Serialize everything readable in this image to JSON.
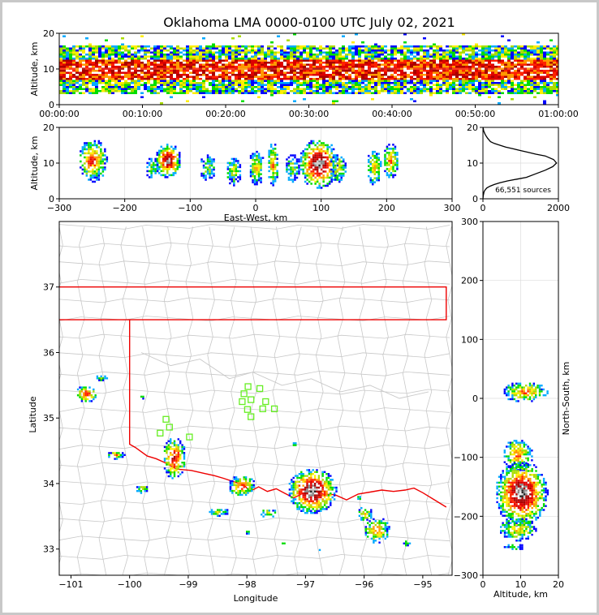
{
  "chart_data": {
    "title": "Oklahoma LMA 0000-0100 UTC July 02, 2021",
    "colors": {
      "county": "#c8c8c8",
      "state": "#ee0000",
      "station": "#66ee22",
      "grid": "#dddddd"
    },
    "density_palette": [
      "#0000ff",
      "#00aaff",
      "#00dd00",
      "#aadd00",
      "#ffee00",
      "#ff9900",
      "#ff2200",
      "#dd0000",
      "#aa0000",
      "#888888",
      "#cccccc",
      "#222222",
      "#ffffff"
    ],
    "panels": [
      {
        "id": "time-height",
        "type": "heatmap",
        "xlabel": "",
        "ylabel": "Altitude, km",
        "xlim": [
          "00:00:00",
          "01:00:00"
        ],
        "ylim": [
          0,
          20
        ],
        "xticks": [
          "00:00:00",
          "00:10:00",
          "00:20:00",
          "00:30:00",
          "00:40:00",
          "00:50:00",
          "01:00:00"
        ],
        "yticks": [
          "0",
          "10",
          "20"
        ],
        "band": {
          "low_km": 3,
          "high_km": 17,
          "core_low_km": 7,
          "core_high_km": 13
        }
      },
      {
        "id": "ew-height",
        "type": "heatmap",
        "xlabel": "East-West, km",
        "ylabel": "Altitude, km",
        "xlim": [
          -300,
          300
        ],
        "ylim": [
          0,
          20
        ],
        "xticks": [
          "−300",
          "−200",
          "−100",
          "0",
          "100",
          "200",
          "300"
        ],
        "yticks": [
          "0",
          "10",
          "20"
        ],
        "cells": [
          {
            "x": -250,
            "y": 11,
            "rx": 22,
            "ry": 6,
            "peak": 7
          },
          {
            "x": -135,
            "y": 11,
            "rx": 20,
            "ry": 5,
            "peak": 10
          },
          {
            "x": -160,
            "y": 9,
            "rx": 10,
            "ry": 3,
            "peak": 3
          },
          {
            "x": -75,
            "y": 9,
            "rx": 12,
            "ry": 4,
            "peak": 3
          },
          {
            "x": -35,
            "y": 8,
            "rx": 12,
            "ry": 4,
            "peak": 4
          },
          {
            "x": 0,
            "y": 9,
            "rx": 12,
            "ry": 5,
            "peak": 5
          },
          {
            "x": 25,
            "y": 10,
            "rx": 9,
            "ry": 6,
            "peak": 6
          },
          {
            "x": 55,
            "y": 9,
            "rx": 12,
            "ry": 4,
            "peak": 3
          },
          {
            "x": 95,
            "y": 10,
            "rx": 30,
            "ry": 7,
            "peak": 11
          },
          {
            "x": 125,
            "y": 9,
            "rx": 14,
            "ry": 4,
            "peak": 4
          },
          {
            "x": 180,
            "y": 9,
            "rx": 12,
            "ry": 5,
            "peak": 5
          },
          {
            "x": 205,
            "y": 11,
            "rx": 12,
            "ry": 5,
            "peak": 6
          }
        ]
      },
      {
        "id": "height-histogram",
        "type": "line",
        "xlabel": "",
        "ylabel": "",
        "xlim": [
          0,
          2000
        ],
        "ylim": [
          0,
          20
        ],
        "xticks": [
          "0",
          "2000"
        ],
        "yticks": [
          "0",
          "10",
          "20"
        ],
        "annotation": "66,551 sources",
        "x": [
          0,
          10,
          30,
          60,
          100,
          180,
          300,
          450,
          650,
          900,
          1150,
          1400,
          1650,
          1850,
          1950,
          1870,
          1650,
          1400,
          1200,
          1000,
          800,
          600,
          450,
          300,
          200,
          120,
          60,
          20,
          5
        ],
        "y": [
          0,
          1,
          2,
          2.5,
          3,
          3.5,
          4,
          4.5,
          5,
          5.5,
          6,
          7,
          8,
          9,
          10,
          11,
          12,
          12.5,
          13,
          13.5,
          14,
          14.5,
          15,
          15.5,
          16,
          17,
          18,
          19,
          20
        ]
      },
      {
        "id": "plan-view",
        "type": "heatmap",
        "xlabel": "Longitude",
        "ylabel": "Latitude",
        "xlim": [
          -101.2,
          -94.5
        ],
        "ylim": [
          32.6,
          38
        ],
        "xticks": [
          "−101",
          "−100",
          "−99",
          "−98",
          "−97",
          "−96",
          "−95"
        ],
        "yticks": [
          "33",
          "34",
          "35",
          "36",
          "37"
        ],
        "cells": [
          {
            "x": -100.75,
            "y": 35.38,
            "rx": 0.18,
            "ry": 0.13,
            "peak": 8
          },
          {
            "x": -100.5,
            "y": 35.62,
            "rx": 0.1,
            "ry": 0.06,
            "peak": 3
          },
          {
            "x": -100.25,
            "y": 34.45,
            "rx": 0.15,
            "ry": 0.06,
            "peak": 6
          },
          {
            "x": -99.25,
            "y": 34.4,
            "rx": 0.2,
            "ry": 0.32,
            "peak": 8
          },
          {
            "x": -99.8,
            "y": 33.93,
            "rx": 0.12,
            "ry": 0.06,
            "peak": 4
          },
          {
            "x": -98.1,
            "y": 33.98,
            "rx": 0.23,
            "ry": 0.16,
            "peak": 7
          },
          {
            "x": -98.5,
            "y": 33.58,
            "rx": 0.18,
            "ry": 0.06,
            "peak": 4
          },
          {
            "x": -97.65,
            "y": 33.56,
            "rx": 0.15,
            "ry": 0.07,
            "peak": 4
          },
          {
            "x": -98.0,
            "y": 33.27,
            "rx": 0.05,
            "ry": 0.04,
            "peak": 3
          },
          {
            "x": -96.9,
            "y": 33.9,
            "rx": 0.42,
            "ry": 0.35,
            "peak": 11
          },
          {
            "x": -96.0,
            "y": 33.55,
            "rx": 0.13,
            "ry": 0.12,
            "peak": 5
          },
          {
            "x": -95.8,
            "y": 33.3,
            "rx": 0.22,
            "ry": 0.2,
            "peak": 6
          },
          {
            "x": -95.3,
            "y": 33.1,
            "rx": 0.07,
            "ry": 0.06,
            "peak": 3
          },
          {
            "x": -99.8,
            "y": 35.33,
            "rx": 0.05,
            "ry": 0.04,
            "peak": 2
          },
          {
            "x": -97.2,
            "y": 34.62,
            "rx": 0.05,
            "ry": 0.04,
            "peak": 2
          },
          {
            "x": -96.1,
            "y": 33.8,
            "rx": 0.05,
            "ry": 0.04,
            "peak": 2
          },
          {
            "x": -96.8,
            "y": 33.0,
            "rx": 0.04,
            "ry": 0.03,
            "peak": 2
          },
          {
            "x": -97.4,
            "y": 33.1,
            "rx": 0.04,
            "ry": 0.03,
            "peak": 2
          }
        ],
        "stations": [
          {
            "lon": -97.98,
            "lat": 35.48
          },
          {
            "lon": -97.78,
            "lat": 35.45
          },
          {
            "lon": -98.05,
            "lat": 35.37
          },
          {
            "lon": -97.93,
            "lat": 35.28
          },
          {
            "lon": -98.08,
            "lat": 35.25
          },
          {
            "lon": -97.68,
            "lat": 35.25
          },
          {
            "lon": -97.73,
            "lat": 35.14
          },
          {
            "lon": -97.53,
            "lat": 35.14
          },
          {
            "lon": -97.99,
            "lat": 35.13
          },
          {
            "lon": -97.93,
            "lat": 35.02
          },
          {
            "lon": -99.38,
            "lat": 34.98
          },
          {
            "lon": -99.32,
            "lat": 34.86
          },
          {
            "lon": -99.48,
            "lat": 34.77
          },
          {
            "lon": -98.98,
            "lat": 34.71
          }
        ],
        "state_border": [
          [
            -101.2,
            37
          ],
          [
            -94.6,
            37
          ],
          [
            -94.6,
            36.5
          ],
          [
            -101.2,
            36.5
          ],
          [
            -100,
            36.5
          ],
          [
            -100,
            34.6
          ],
          [
            -99.9,
            34.55
          ],
          [
            -99.7,
            34.42
          ],
          [
            -99.55,
            34.38
          ],
          [
            -99.4,
            34.32
          ],
          [
            -99.2,
            34.22
          ],
          [
            -98.95,
            34.2
          ],
          [
            -98.7,
            34.15
          ],
          [
            -98.55,
            34.12
          ],
          [
            -98.4,
            34.08
          ],
          [
            -98.2,
            34.02
          ],
          [
            -98.05,
            33.98
          ],
          [
            -97.95,
            33.88
          ],
          [
            -97.8,
            33.95
          ],
          [
            -97.65,
            33.88
          ],
          [
            -97.5,
            33.92
          ],
          [
            -97.35,
            33.85
          ],
          [
            -97.2,
            33.78
          ],
          [
            -97.05,
            33.85
          ],
          [
            -96.9,
            33.9
          ],
          [
            -96.7,
            33.84
          ],
          [
            -96.5,
            33.83
          ],
          [
            -96.3,
            33.75
          ],
          [
            -96.1,
            33.84
          ],
          [
            -95.9,
            33.87
          ],
          [
            -95.7,
            33.9
          ],
          [
            -95.5,
            33.88
          ],
          [
            -95.3,
            33.9
          ],
          [
            -95.15,
            33.93
          ],
          [
            -95.0,
            33.86
          ],
          [
            -94.8,
            33.75
          ],
          [
            -94.6,
            33.64
          ]
        ]
      },
      {
        "id": "alt-ns",
        "type": "heatmap",
        "xlabel": "Altitude, km",
        "ylabel": "North-South, km",
        "xlim": [
          0,
          20
        ],
        "ylim": [
          -300,
          300
        ],
        "xticks": [
          "0",
          "10",
          "20"
        ],
        "yticks": [
          "−300",
          "−200",
          "−100",
          "0",
          "100",
          "200",
          "300"
        ],
        "cells": [
          {
            "x": 11,
            "y": 12,
            "rx": 6,
            "ry": 18,
            "peak": 6
          },
          {
            "x": 9,
            "y": -95,
            "rx": 4,
            "ry": 28,
            "peak": 6
          },
          {
            "x": 10,
            "y": -160,
            "rx": 7,
            "ry": 55,
            "peak": 11
          },
          {
            "x": 9,
            "y": -220,
            "rx": 5,
            "ry": 20,
            "peak": 5
          },
          {
            "x": 8,
            "y": -250,
            "rx": 3,
            "ry": 6,
            "peak": 3
          }
        ]
      }
    ]
  }
}
